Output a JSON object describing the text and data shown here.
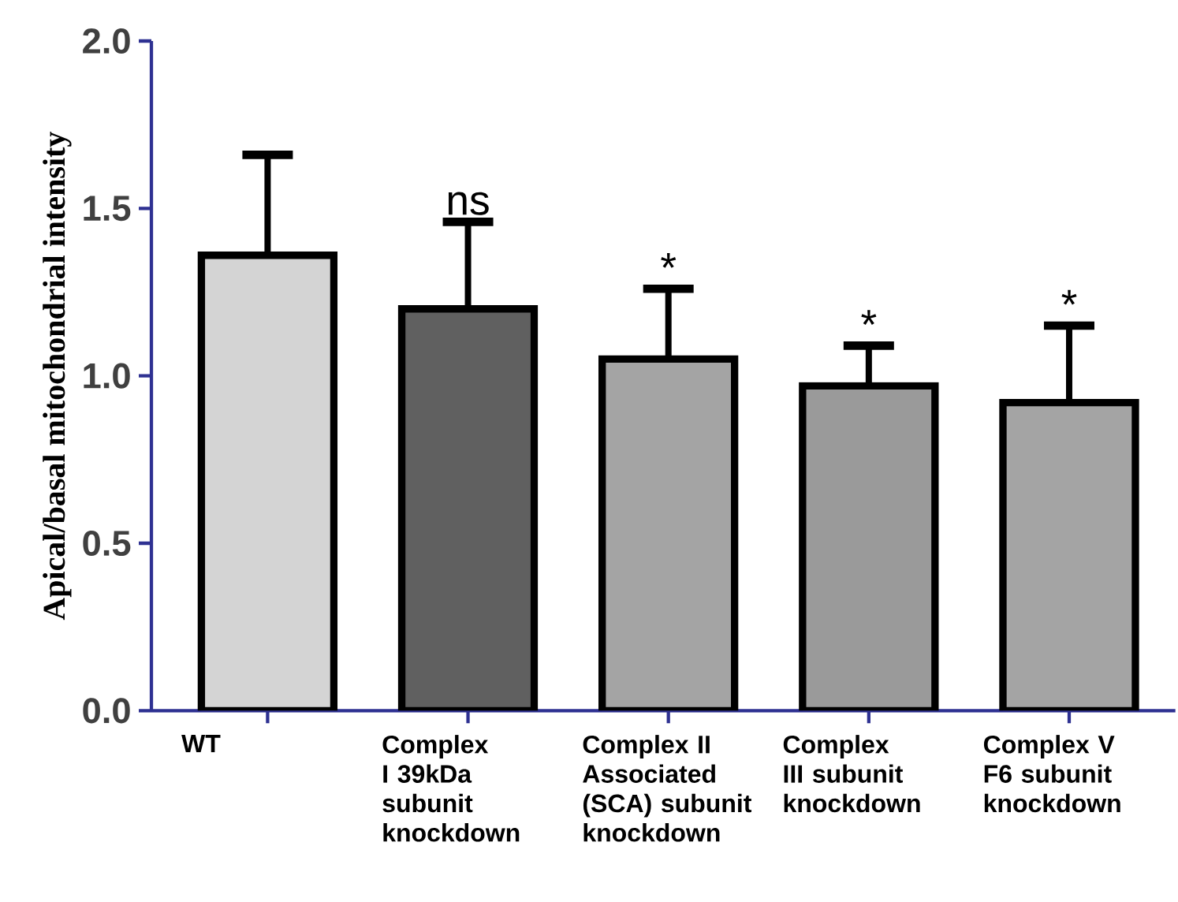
{
  "chart_data": {
    "type": "bar",
    "ylabel": "Apical/basal mitochondrial intensity",
    "categories": [
      "WT",
      "Complex I 39kDa subunit knockdown",
      "Complex II Associated (SCA) subunit knockdown",
      "Complex III subunit knockdown",
      "Complex V F6 subunit knockdown"
    ],
    "values": [
      1.36,
      1.2,
      1.05,
      0.97,
      0.92
    ],
    "colors": [
      "#d4d4d4",
      "#606060",
      "#a4a4a4",
      "#9a9a9a",
      "#a4a4a4"
    ],
    "errors": [
      [
        1.36,
        1.66
      ],
      [
        1.2,
        1.46
      ],
      [
        1.05,
        1.26
      ],
      [
        0.97,
        1.09
      ],
      [
        0.92,
        1.15
      ]
    ],
    "ylim": [
      0,
      2
    ],
    "yticks": [
      {
        "value": 0,
        "label": "0.0"
      },
      {
        "value": 0.5,
        "label": "0.5"
      },
      {
        "value": 1,
        "label": "1.0"
      },
      {
        "value": 1.5,
        "label": "1.5"
      },
      {
        "value": 2,
        "label": "2.0"
      }
    ],
    "annotations": [
      "ns",
      "*",
      "*",
      "*"
    ]
  }
}
